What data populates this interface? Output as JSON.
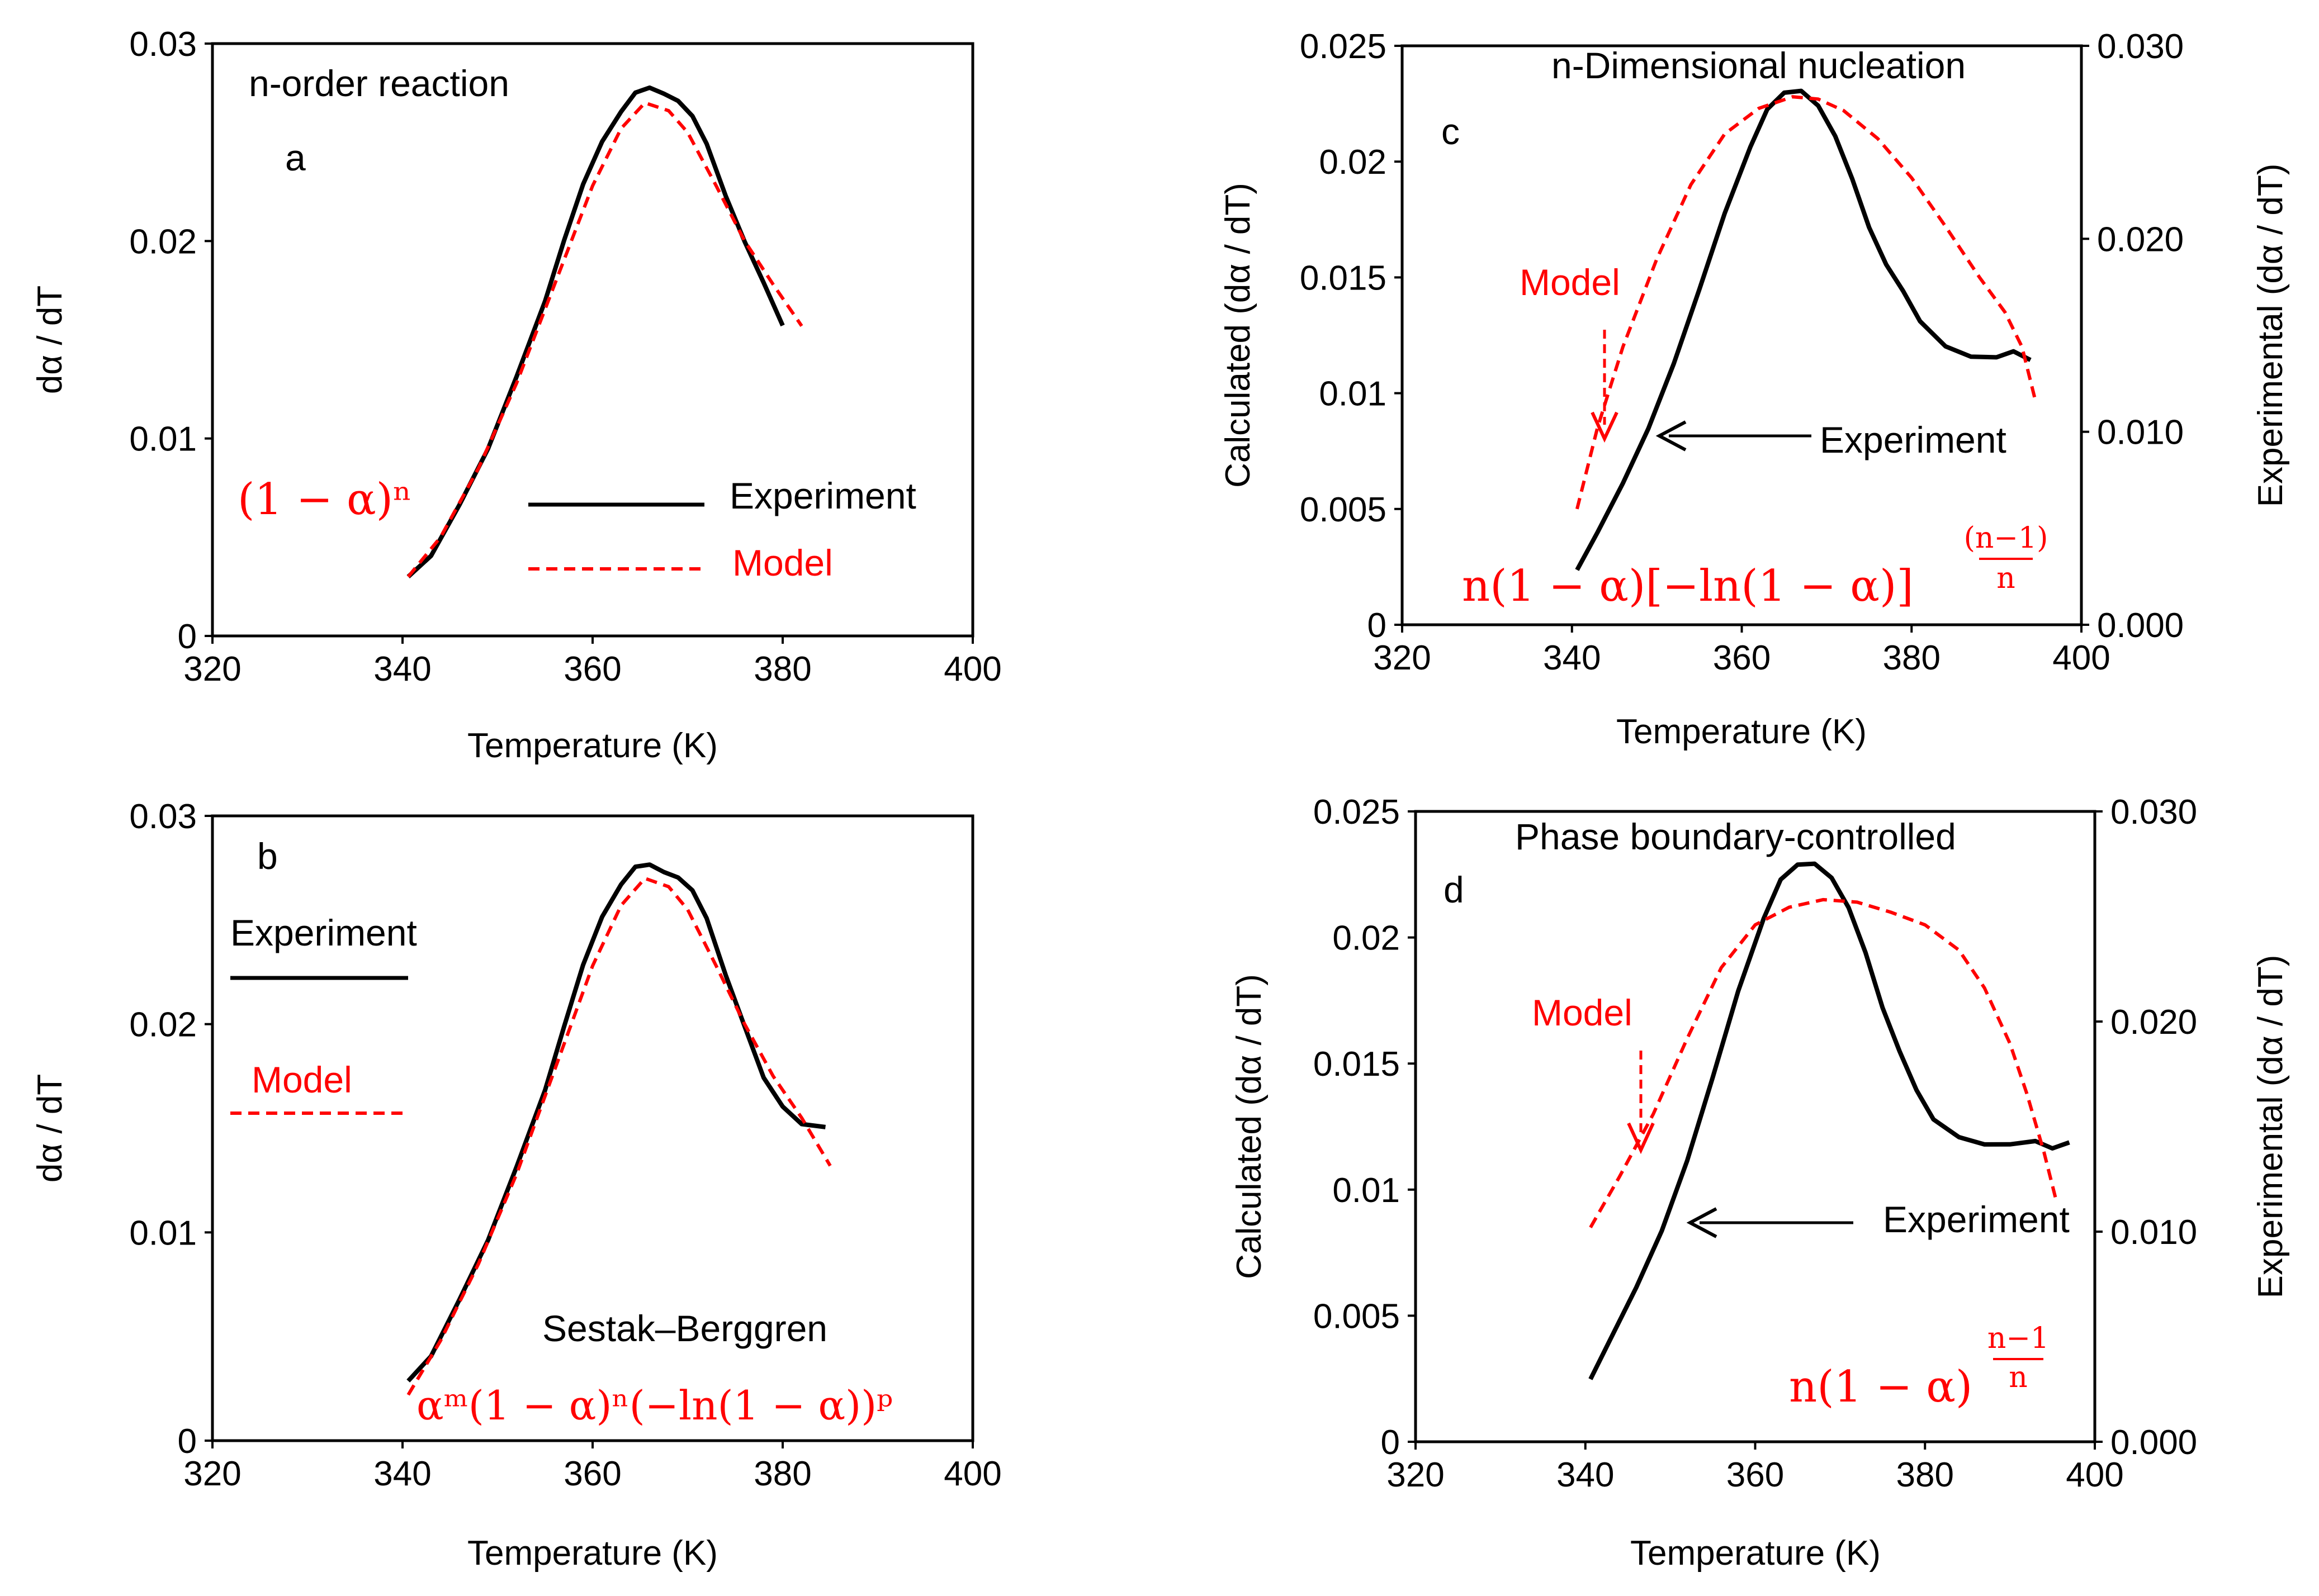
{
  "chart_data": [
    {
      "id": "a",
      "type": "line",
      "panel_label": "a",
      "title": "n-order reaction",
      "xlabel": "Temperature (K)",
      "ylabel": "dα / dT",
      "xlim": [
        320,
        400
      ],
      "ylim": [
        0,
        0.03
      ],
      "x_ticks": [
        "320",
        "340",
        "360",
        "380",
        "400"
      ],
      "y_ticks": [
        "0",
        "0.01",
        "0.02",
        "0.03"
      ],
      "formula": "(1 − α)ⁿ",
      "legend": {
        "placement": "bottom-right",
        "experiment": "Experiment",
        "model": "Model"
      },
      "series": [
        {
          "name": "Experiment",
          "x": [
            340.6,
            343,
            346,
            349,
            352,
            355,
            357,
            359,
            361,
            363,
            364.5,
            366,
            367.5,
            369,
            370.5,
            372,
            374,
            376,
            378,
            380
          ],
          "y": [
            0.003,
            0.0042,
            0.0068,
            0.0095,
            0.013,
            0.0168,
            0.02,
            0.023,
            0.0252,
            0.0266,
            0.0274,
            0.0276,
            0.0274,
            0.0272,
            0.0265,
            0.025,
            0.0222,
            0.0198,
            0.0178,
            0.0158
          ]
        },
        {
          "name": "Model",
          "x": [
            340.6,
            344,
            348,
            352,
            356,
            360,
            363,
            365.5,
            368,
            370,
            373,
            376,
            379,
            382
          ],
          "y": [
            0.003,
            0.005,
            0.0085,
            0.0128,
            0.0178,
            0.0228,
            0.0257,
            0.027,
            0.0266,
            0.0255,
            0.0228,
            0.02,
            0.0178,
            0.0157
          ]
        }
      ]
    },
    {
      "id": "b",
      "type": "line",
      "panel_label": "b",
      "title": "Sestak–Berggren",
      "xlabel": "Temperature (K)",
      "ylabel": "dα / dT",
      "xlim": [
        320,
        400
      ],
      "ylim": [
        0,
        0.03
      ],
      "x_ticks": [
        "320",
        "340",
        "360",
        "380",
        "400"
      ],
      "y_ticks": [
        "0",
        "0.01",
        "0.02",
        "0.03"
      ],
      "formula": "αᵐ(1 − α)ⁿ(−ln(1 − α))ᵖ",
      "legend": {
        "placement": "top-left",
        "experiment": "Experiment",
        "model": "Model"
      },
      "series": [
        {
          "name": "Experiment",
          "x": [
            340.6,
            343,
            346,
            349,
            352,
            355,
            357,
            359,
            361,
            363,
            364.5,
            366,
            367.5,
            369,
            370.5,
            372,
            374,
            376,
            378,
            380,
            382,
            384.5
          ],
          "y": [
            0.003,
            0.0042,
            0.0068,
            0.0095,
            0.013,
            0.0168,
            0.02,
            0.023,
            0.0252,
            0.0266,
            0.0274,
            0.0276,
            0.0274,
            0.0272,
            0.0265,
            0.025,
            0.0222,
            0.0198,
            0.0175,
            0.0162,
            0.0153,
            0.015
          ]
        },
        {
          "name": "Model",
          "x": [
            340.6,
            344,
            348,
            352,
            356,
            360,
            363,
            365.5,
            368,
            370,
            373,
            376,
            379,
            382,
            385
          ],
          "y": [
            0.0022,
            0.0048,
            0.0085,
            0.0128,
            0.0178,
            0.0228,
            0.0257,
            0.027,
            0.0266,
            0.0255,
            0.0228,
            0.02,
            0.0175,
            0.0155,
            0.0132
          ]
        }
      ]
    },
    {
      "id": "c",
      "type": "line",
      "panel_label": "c",
      "title": "n-Dimensional  nucleation",
      "xlabel": "Temperature (K)",
      "ylabel": "Calculated (dα / dT)",
      "y2label": "Experimental (dα / dT)",
      "xlim": [
        320,
        400
      ],
      "ylim": [
        0,
        0.025
      ],
      "y2lim": [
        0,
        0.03
      ],
      "x_ticks": [
        "320",
        "340",
        "360",
        "380",
        "400"
      ],
      "y_ticks": [
        "0",
        "0.005",
        "0.01",
        "0.015",
        "0.02",
        "0.025"
      ],
      "y2_ticks": [
        "0.000",
        "0.010",
        "0.020",
        "0.030"
      ],
      "formula_main": "n(1 − α)[−ln(1 − α)]",
      "formula_exp_num": "(n−1)",
      "formula_exp_den": "n",
      "model_label": "Model",
      "experiment_label": "Experiment",
      "series": [
        {
          "name": "Experiment",
          "axis": "y2",
          "x": [
            340.6,
            343,
            346,
            349,
            352,
            355,
            358,
            361,
            363,
            365,
            367,
            369,
            371,
            373,
            375,
            377,
            379,
            381,
            384,
            387,
            390,
            392,
            394
          ],
          "y": [
            0.003,
            0.0048,
            0.0072,
            0.01,
            0.0135,
            0.0175,
            0.0215,
            0.0248,
            0.0266,
            0.0274,
            0.0276,
            0.027,
            0.0255,
            0.0232,
            0.0205,
            0.0185,
            0.0172,
            0.0158,
            0.0146,
            0.014,
            0.0138,
            0.014,
            0.0136
          ]
        },
        {
          "name": "Model",
          "axis": "y",
          "x": [
            340.6,
            343,
            346,
            350,
            354,
            358,
            362,
            366,
            369,
            372,
            376,
            380,
            384,
            388,
            391,
            393,
            394.5
          ],
          "y": [
            0.005,
            0.0085,
            0.012,
            0.0158,
            0.019,
            0.0212,
            0.0223,
            0.0228,
            0.0227,
            0.0222,
            0.021,
            0.0193,
            0.0172,
            0.015,
            0.0135,
            0.012,
            0.0098
          ]
        }
      ]
    },
    {
      "id": "d",
      "type": "line",
      "panel_label": "d",
      "title": "Phase boundary-controlled",
      "xlabel": "Temperature (K)",
      "ylabel": "Calculated (dα / dT)",
      "y2label": "Experimental (dα / dT)",
      "xlim": [
        320,
        400
      ],
      "ylim": [
        0,
        0.025
      ],
      "y2lim": [
        0,
        0.03
      ],
      "x_ticks": [
        "320",
        "340",
        "360",
        "380",
        "400"
      ],
      "y_ticks": [
        "0",
        "0.005",
        "0.01",
        "0.015",
        "0.02",
        "0.025"
      ],
      "y2_ticks": [
        "0.000",
        "0.010",
        "0.020",
        "0.030"
      ],
      "formula_main": "n(1 − α)",
      "formula_exp_num": "n−1",
      "formula_exp_den": "n",
      "model_label": "Model",
      "experiment_label": "Experiment",
      "series": [
        {
          "name": "Experiment",
          "axis": "y2",
          "x": [
            340.6,
            343,
            346,
            349,
            352,
            355,
            358,
            361,
            363,
            365,
            367,
            369,
            371,
            373,
            375,
            377,
            379,
            381,
            384,
            387,
            390,
            393,
            395,
            397
          ],
          "y": [
            0.003,
            0.0048,
            0.0072,
            0.01,
            0.0135,
            0.0175,
            0.0215,
            0.0248,
            0.0266,
            0.0274,
            0.0276,
            0.027,
            0.0255,
            0.0232,
            0.0205,
            0.0185,
            0.0168,
            0.0155,
            0.0146,
            0.0141,
            0.014,
            0.0142,
            0.014,
            0.0144
          ]
        },
        {
          "name": "Model",
          "axis": "y",
          "x": [
            340.6,
            344,
            348,
            352,
            356,
            360,
            364,
            368,
            372,
            376,
            380,
            384,
            387,
            390,
            392,
            394,
            395.5
          ],
          "y": [
            0.0085,
            0.0105,
            0.013,
            0.016,
            0.0188,
            0.0205,
            0.0212,
            0.0215,
            0.0214,
            0.021,
            0.0205,
            0.0195,
            0.018,
            0.0158,
            0.0138,
            0.0115,
            0.0095
          ]
        }
      ]
    }
  ]
}
